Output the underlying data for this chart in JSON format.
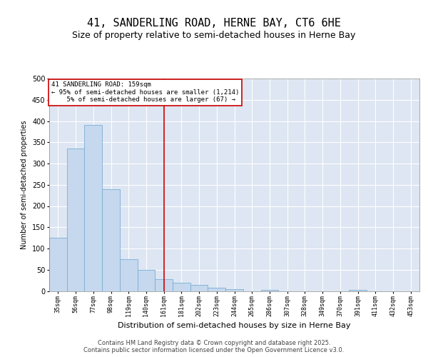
{
  "title": "41, SANDERLING ROAD, HERNE BAY, CT6 6HE",
  "subtitle": "Size of property relative to semi-detached houses in Herne Bay",
  "xlabel": "Distribution of semi-detached houses by size in Herne Bay",
  "ylabel": "Number of semi-detached properties",
  "categories": [
    "35sqm",
    "56sqm",
    "77sqm",
    "98sqm",
    "119sqm",
    "140sqm",
    "161sqm",
    "181sqm",
    "202sqm",
    "223sqm",
    "244sqm",
    "265sqm",
    "286sqm",
    "307sqm",
    "328sqm",
    "349sqm",
    "370sqm",
    "391sqm",
    "411sqm",
    "432sqm",
    "453sqm"
  ],
  "values": [
    125,
    335,
    390,
    240,
    75,
    50,
    27,
    20,
    14,
    8,
    5,
    0,
    2,
    0,
    0,
    0,
    0,
    3,
    0,
    0,
    0
  ],
  "bar_color": "#c5d8ee",
  "bar_edge_color": "#7aadd4",
  "vline_x": 6,
  "vline_color": "#cc0000",
  "annotation_line1": "41 SANDERLING ROAD: 159sqm",
  "annotation_line2": "← 95% of semi-detached houses are smaller (1,214)",
  "annotation_line3": "5% of semi-detached houses are larger (67) →",
  "annotation_box_color": "#ffffff",
  "annotation_box_edge": "#cc0000",
  "plot_background": "#dde6f2",
  "grid_color": "#ffffff",
  "ylim": [
    0,
    500
  ],
  "yticks": [
    0,
    50,
    100,
    150,
    200,
    250,
    300,
    350,
    400,
    450,
    500
  ],
  "footer": "Contains HM Land Registry data © Crown copyright and database right 2025.\nContains public sector information licensed under the Open Government Licence v3.0.",
  "title_fontsize": 11,
  "subtitle_fontsize": 9,
  "ylabel_fontsize": 7,
  "xlabel_fontsize": 8,
  "tick_fontsize": 6,
  "ytick_fontsize": 7,
  "annotation_fontsize": 6.5,
  "footer_fontsize": 6
}
